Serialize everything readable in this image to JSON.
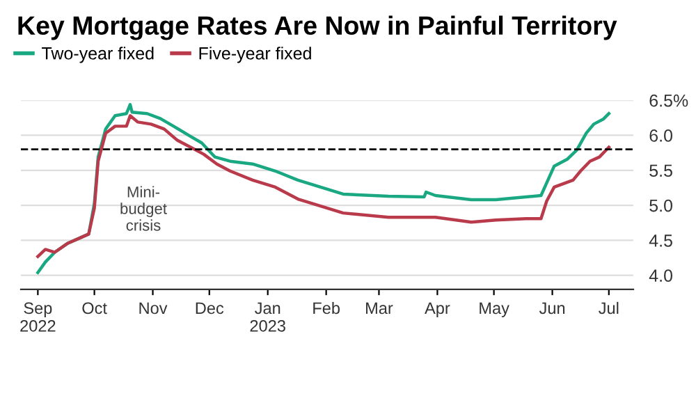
{
  "chart_data": {
    "type": "line",
    "title": "Key Mortgage Rates Are Now in Painful Territory",
    "series": [
      {
        "name": "Two-year fixed",
        "color": "#1aa883",
        "x": [
          "2022-09-01",
          "2022-09-05",
          "2022-09-10",
          "2022-09-17",
          "2022-09-23",
          "2022-09-28",
          "2022-10-01",
          "2022-10-03",
          "2022-10-07",
          "2022-10-12",
          "2022-10-18",
          "2022-10-20",
          "2022-10-21",
          "2022-10-29",
          "2022-11-05",
          "2022-11-12",
          "2022-11-20",
          "2022-11-27",
          "2022-12-04",
          "2022-12-12",
          "2022-12-24",
          "2023-01-05",
          "2023-01-17",
          "2023-01-29",
          "2023-02-10",
          "2023-03-06",
          "2023-03-25",
          "2023-03-26",
          "2023-03-31",
          "2023-04-19",
          "2023-05-02",
          "2023-05-18",
          "2023-05-26",
          "2023-06-02",
          "2023-06-09",
          "2023-06-14",
          "2023-06-19",
          "2023-06-23",
          "2023-06-28",
          "2023-07-01"
        ],
        "values": [
          4.04,
          4.19,
          4.33,
          4.46,
          4.53,
          4.59,
          5.03,
          5.69,
          6.09,
          6.28,
          6.31,
          6.44,
          6.33,
          6.31,
          6.24,
          6.13,
          6.0,
          5.89,
          5.69,
          5.63,
          5.59,
          5.49,
          5.36,
          5.26,
          5.16,
          5.13,
          5.12,
          5.19,
          5.14,
          5.08,
          5.08,
          5.12,
          5.14,
          5.56,
          5.66,
          5.79,
          6.03,
          6.16,
          6.23,
          6.31
        ]
      },
      {
        "name": "Five-year fixed",
        "color": "#b83a4b",
        "x": [
          "2022-09-01",
          "2022-09-05",
          "2022-09-10",
          "2022-09-17",
          "2022-09-23",
          "2022-09-28",
          "2022-10-01",
          "2022-10-03",
          "2022-10-07",
          "2022-10-12",
          "2022-10-18",
          "2022-10-20",
          "2022-10-24",
          "2022-10-31",
          "2022-11-07",
          "2022-11-14",
          "2022-11-21",
          "2022-11-28",
          "2022-12-05",
          "2022-12-12",
          "2022-12-24",
          "2023-01-05",
          "2023-01-17",
          "2023-01-29",
          "2023-02-10",
          "2023-03-06",
          "2023-03-31",
          "2023-04-19",
          "2023-05-02",
          "2023-05-18",
          "2023-05-26",
          "2023-05-29",
          "2023-06-02",
          "2023-06-12",
          "2023-06-16",
          "2023-06-21",
          "2023-06-26",
          "2023-07-01"
        ],
        "values": [
          4.27,
          4.37,
          4.33,
          4.46,
          4.53,
          4.59,
          4.96,
          5.63,
          6.03,
          6.13,
          6.13,
          6.28,
          6.19,
          6.16,
          6.09,
          5.93,
          5.83,
          5.73,
          5.59,
          5.49,
          5.36,
          5.26,
          5.09,
          4.99,
          4.89,
          4.83,
          4.83,
          4.76,
          4.79,
          4.81,
          4.81,
          5.06,
          5.26,
          5.36,
          5.49,
          5.63,
          5.69,
          5.83
        ]
      }
    ],
    "xlim": [
      "2022-08-23",
      "2023-07-14"
    ],
    "xticks": [
      {
        "value": "2022-09-01",
        "label": "Sep\n2022"
      },
      {
        "value": "2022-10-01",
        "label": "Oct"
      },
      {
        "value": "2022-11-01",
        "label": "Nov"
      },
      {
        "value": "2022-12-01",
        "label": "Dec"
      },
      {
        "value": "2023-01-01",
        "label": "Jan\n2023"
      },
      {
        "value": "2023-02-01",
        "label": "Feb"
      },
      {
        "value": "2023-03-01",
        "label": "Mar"
      },
      {
        "value": "2023-04-01",
        "label": "Apr"
      },
      {
        "value": "2023-05-01",
        "label": "May"
      },
      {
        "value": "2023-06-01",
        "label": "Jun"
      },
      {
        "value": "2023-07-01",
        "label": "Jul"
      }
    ],
    "ylim": [
      3.8,
      6.5
    ],
    "yticks": [
      {
        "value": 4.0,
        "label": "4.0"
      },
      {
        "value": 4.5,
        "label": "4.5"
      },
      {
        "value": 5.0,
        "label": "5.0"
      },
      {
        "value": 5.5,
        "label": "5.5"
      },
      {
        "value": 6.0,
        "label": "6.0"
      },
      {
        "value": 6.5,
        "label": "6.5%"
      }
    ],
    "ref_lines": [
      {
        "axis": "y",
        "value": 5.8,
        "color": "#000000",
        "line_style": "dashed"
      }
    ],
    "annotations": [
      "Mini-\nbudget\ncrisis"
    ],
    "grid": "y",
    "legend": "top left",
    "line_style": "solid",
    "marker": "none"
  }
}
